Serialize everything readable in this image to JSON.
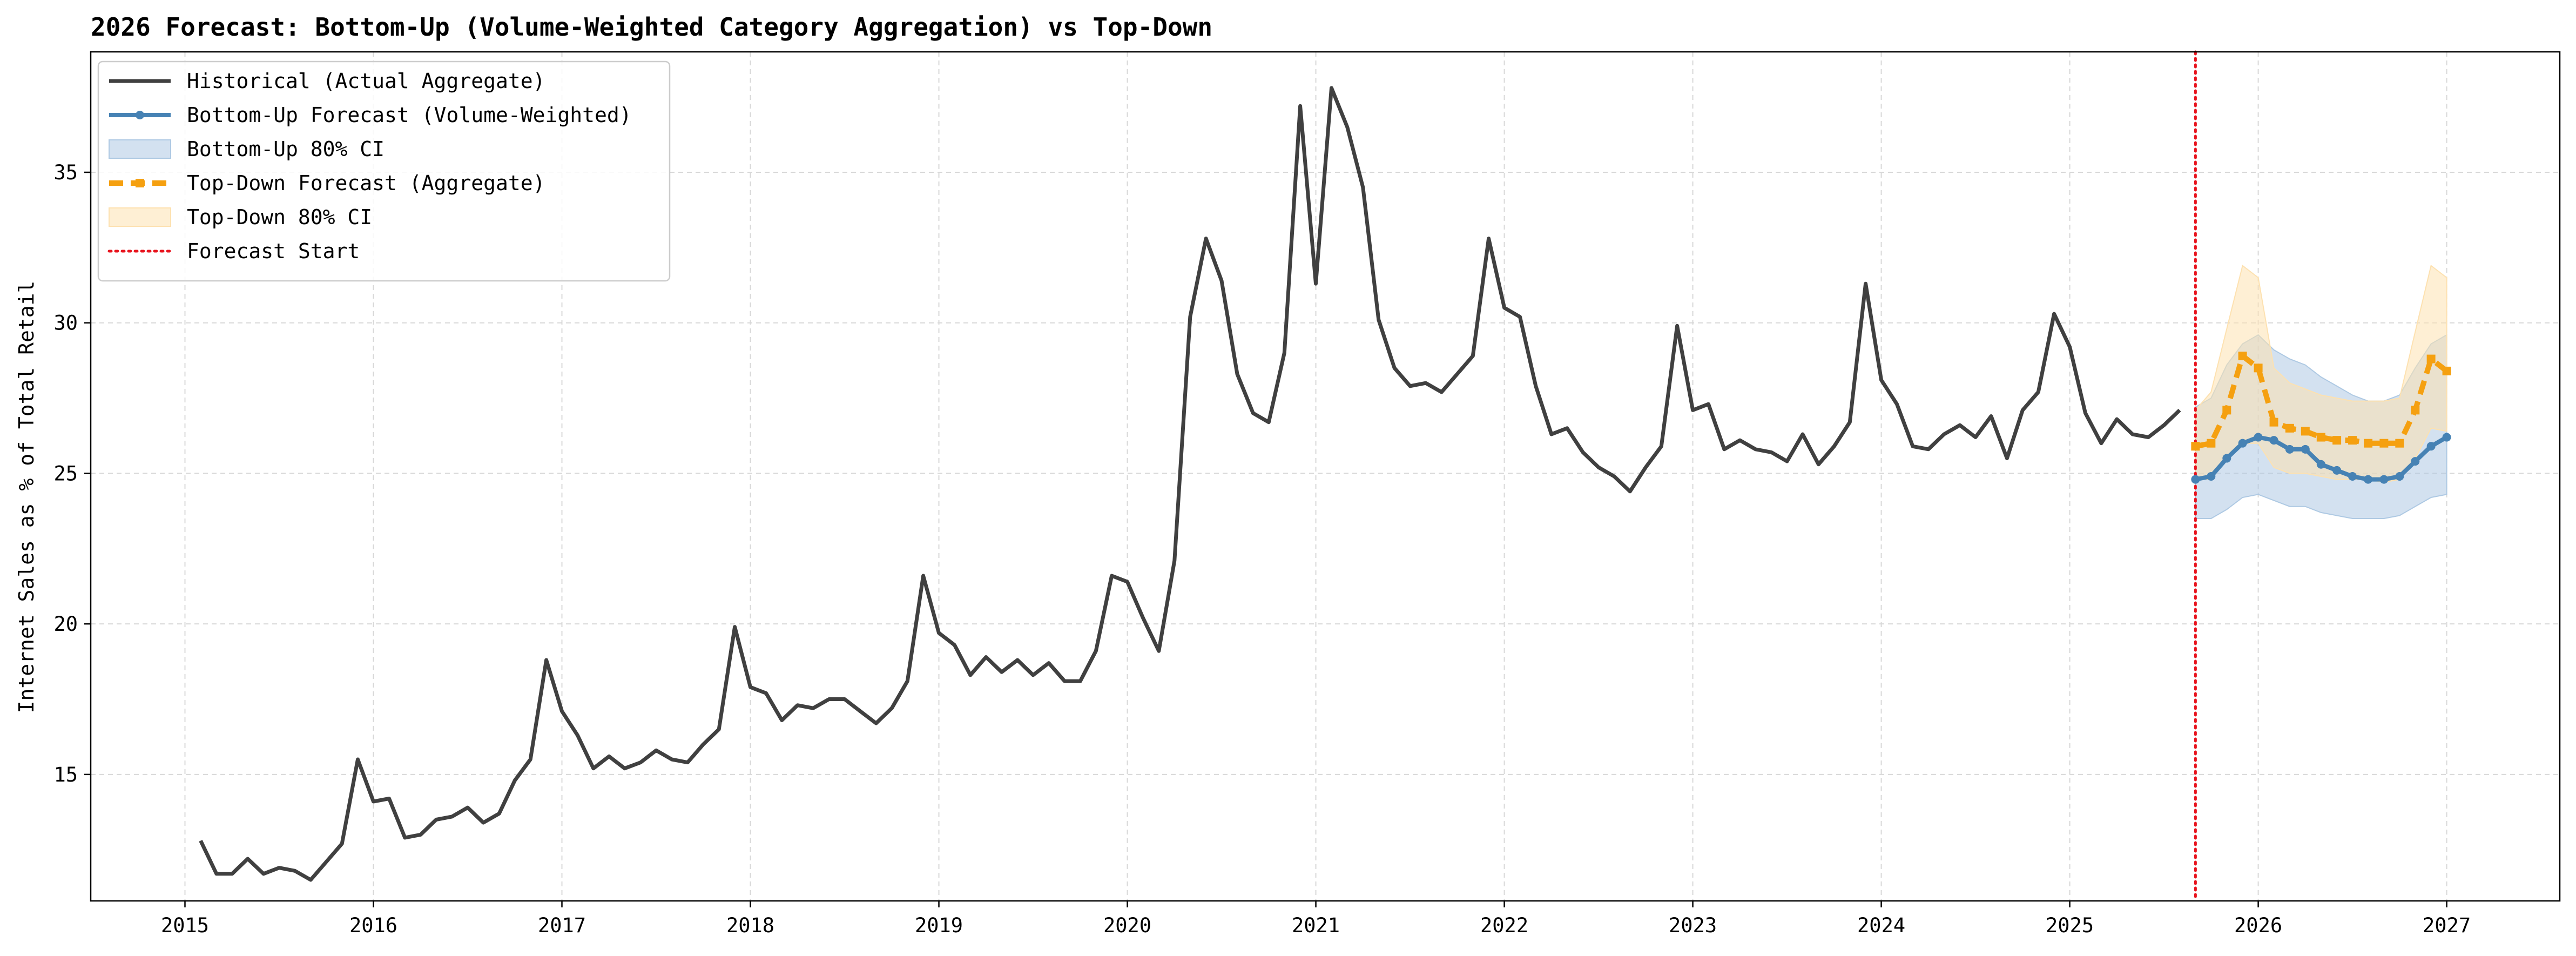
{
  "chart_data": {
    "type": "line",
    "title": "2026 Forecast: Bottom-Up (Volume-Weighted Category Aggregation) vs Top-Down",
    "xlabel": "",
    "ylabel": "Internet Sales as % of Total Retail",
    "xlim": [
      2014.5,
      2027.6
    ],
    "ylim": [
      10.8,
      39.0
    ],
    "x_ticks": [
      2015,
      2016,
      2017,
      2018,
      2019,
      2020,
      2021,
      2022,
      2023,
      2024,
      2025,
      2026,
      2027
    ],
    "x_tick_labels": [
      "2015",
      "2016",
      "2017",
      "2018",
      "2019",
      "2020",
      "2021",
      "2022",
      "2023",
      "2024",
      "2025",
      "2026",
      "2027"
    ],
    "y_ticks": [
      15,
      20,
      25,
      30,
      35
    ],
    "y_tick_labels": [
      "15",
      "20",
      "25",
      "30",
      "35"
    ],
    "grid": true,
    "legend_position": "upper-left",
    "forecast_start": 2025.667,
    "colors": {
      "historical": "#404040",
      "bottom_up": "#4682b4",
      "bottom_up_ci": "#aec9e3",
      "top_down": "#f5a010",
      "top_down_ci": "#fde1b0",
      "forecast_start": "#e8141e"
    },
    "legend": [
      {
        "key": "historical",
        "label": "Historical (Actual Aggregate)",
        "style": "solid-line"
      },
      {
        "key": "bottom_up",
        "label": "Bottom-Up Forecast (Volume-Weighted)",
        "style": "solid-line-markers"
      },
      {
        "key": "bottom_up_ci",
        "label": "Bottom-Up 80% CI",
        "style": "patch"
      },
      {
        "key": "top_down",
        "label": "Top-Down Forecast (Aggregate)",
        "style": "dashed-line-markers"
      },
      {
        "key": "top_down_ci",
        "label": "Top-Down 80% CI",
        "style": "patch"
      },
      {
        "key": "forecast_start",
        "label": "Forecast Start",
        "style": "dotted-line"
      }
    ],
    "series": [
      {
        "name": "Historical (Actual Aggregate)",
        "x": [
          2015.083,
          2015.167,
          2015.25,
          2015.333,
          2015.417,
          2015.5,
          2015.583,
          2015.667,
          2015.75,
          2015.833,
          2015.917,
          2016.0,
          2016.083,
          2016.167,
          2016.25,
          2016.333,
          2016.417,
          2016.5,
          2016.583,
          2016.667,
          2016.75,
          2016.833,
          2016.917,
          2017.0,
          2017.083,
          2017.167,
          2017.25,
          2017.333,
          2017.417,
          2017.5,
          2017.583,
          2017.667,
          2017.75,
          2017.833,
          2017.917,
          2018.0,
          2018.083,
          2018.167,
          2018.25,
          2018.333,
          2018.417,
          2018.5,
          2018.583,
          2018.667,
          2018.75,
          2018.833,
          2018.917,
          2019.0,
          2019.083,
          2019.167,
          2019.25,
          2019.333,
          2019.417,
          2019.5,
          2019.583,
          2019.667,
          2019.75,
          2019.833,
          2019.917,
          2020.0,
          2020.083,
          2020.167,
          2020.25,
          2020.333,
          2020.417,
          2020.5,
          2020.583,
          2020.667,
          2020.75,
          2020.833,
          2020.917,
          2021.0,
          2021.083,
          2021.167,
          2021.25,
          2021.333,
          2021.417,
          2021.5,
          2021.583,
          2021.667,
          2021.75,
          2021.833,
          2021.917,
          2022.0,
          2022.083,
          2022.167,
          2022.25,
          2022.333,
          2022.417,
          2022.5,
          2022.583,
          2022.667,
          2022.75,
          2022.833,
          2022.917,
          2023.0,
          2023.083,
          2023.167,
          2023.25,
          2023.333,
          2023.417,
          2023.5,
          2023.583,
          2023.667,
          2023.75,
          2023.833,
          2023.917,
          2024.0,
          2024.083,
          2024.167,
          2024.25,
          2024.333,
          2024.417,
          2024.5,
          2024.583,
          2024.667,
          2024.75,
          2024.833,
          2024.917,
          2025.0,
          2025.083,
          2025.167,
          2025.25,
          2025.333,
          2025.417,
          2025.5,
          2025.583
        ],
        "values": [
          12.8,
          11.7,
          11.7,
          12.2,
          11.7,
          11.9,
          11.8,
          11.5,
          12.1,
          12.7,
          15.5,
          14.1,
          14.2,
          12.9,
          13.0,
          13.5,
          13.6,
          13.9,
          13.4,
          13.7,
          14.8,
          15.5,
          18.8,
          17.1,
          16.3,
          15.2,
          15.6,
          15.2,
          15.4,
          15.8,
          15.5,
          15.4,
          16.0,
          16.5,
          19.9,
          17.9,
          17.7,
          16.8,
          17.3,
          17.2,
          17.5,
          17.5,
          17.1,
          16.7,
          17.2,
          18.1,
          21.6,
          19.7,
          19.3,
          18.3,
          18.9,
          18.4,
          18.8,
          18.3,
          18.7,
          18.1,
          18.1,
          19.1,
          21.6,
          21.4,
          20.2,
          19.1,
          22.1,
          30.2,
          32.8,
          31.4,
          28.3,
          27.0,
          26.7,
          29.0,
          37.2,
          31.3,
          37.8,
          36.5,
          34.5,
          30.1,
          28.5,
          27.9,
          28.0,
          27.7,
          28.3,
          28.9,
          32.8,
          30.5,
          30.2,
          27.9,
          26.3,
          26.5,
          25.7,
          25.2,
          24.9,
          24.4,
          25.2,
          25.9,
          29.9,
          27.1,
          27.3,
          25.8,
          26.1,
          25.8,
          25.7,
          25.4,
          26.3,
          25.3,
          25.9,
          26.7,
          31.3,
          28.1,
          27.3,
          25.9,
          25.8,
          26.3,
          26.6,
          26.2,
          26.9,
          25.5,
          27.1,
          27.7,
          30.3,
          29.2,
          27.0,
          26.0,
          26.8,
          26.3,
          26.2,
          26.6,
          27.1
        ]
      },
      {
        "name": "Bottom-Up Forecast (Volume-Weighted)",
        "x": [
          2025.667,
          2025.75,
          2025.833,
          2025.917,
          2026.0,
          2026.083,
          2026.167,
          2026.25,
          2026.333,
          2026.417,
          2026.5,
          2026.583,
          2026.667,
          2026.75,
          2026.833,
          2026.917,
          2027.0
        ],
        "values": [
          24.8,
          24.9,
          25.5,
          26.0,
          26.2,
          26.1,
          25.8,
          25.8,
          25.3,
          25.1,
          24.9,
          24.8,
          24.8,
          24.9,
          25.4,
          25.9,
          26.2
        ],
        "ci_lower": [
          23.5,
          23.5,
          23.8,
          24.2,
          24.3,
          24.1,
          23.9,
          23.9,
          23.7,
          23.6,
          23.5,
          23.5,
          23.5,
          23.6,
          23.9,
          24.2,
          24.3
        ],
        "ci_upper": [
          27.2,
          27.5,
          28.6,
          29.3,
          29.6,
          29.1,
          28.8,
          28.6,
          28.2,
          27.9,
          27.6,
          27.4,
          27.4,
          27.6,
          28.5,
          29.3,
          29.6
        ]
      },
      {
        "name": "Top-Down Forecast (Aggregate)",
        "x": [
          2025.667,
          2025.75,
          2025.833,
          2025.917,
          2026.0,
          2026.083,
          2026.167,
          2026.25,
          2026.333,
          2026.417,
          2026.5,
          2026.583,
          2026.667,
          2026.75,
          2026.833,
          2026.917,
          2027.0
        ],
        "values": [
          25.9,
          26.0,
          27.1,
          28.9,
          28.5,
          26.7,
          26.5,
          26.4,
          26.2,
          26.1,
          26.1,
          26.0,
          26.0,
          26.0,
          27.1,
          28.8,
          28.4
        ],
        "ci_lower": [
          24.8,
          24.8,
          25.5,
          26.0,
          26.0,
          25.2,
          25.0,
          25.0,
          24.9,
          24.8,
          24.8,
          24.8,
          24.7,
          24.8,
          25.5,
          26.5,
          26.4
        ],
        "ci_upper": [
          27.1,
          27.7,
          29.8,
          31.9,
          31.5,
          28.5,
          28.0,
          27.8,
          27.6,
          27.5,
          27.4,
          27.4,
          27.4,
          27.5,
          29.7,
          31.9,
          31.5
        ]
      }
    ]
  }
}
